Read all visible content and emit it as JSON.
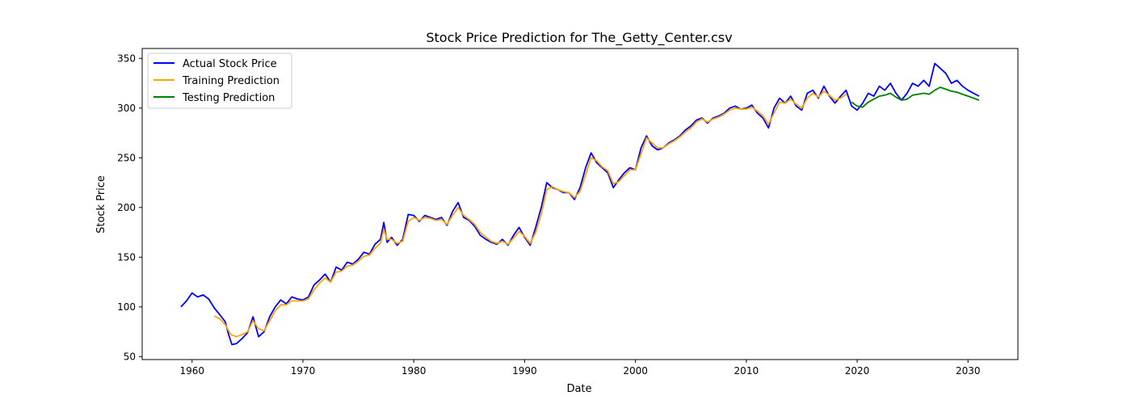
{
  "chart_data": {
    "type": "line",
    "title": "Stock Price Prediction for The_Getty_Center.csv",
    "xlabel": "Date",
    "ylabel": "Stock Price",
    "xlim": [
      1955.5,
      2034.5
    ],
    "ylim": [
      47,
      360
    ],
    "xticks": [
      1960,
      1970,
      1980,
      1990,
      2000,
      2010,
      2020,
      2030
    ],
    "yticks": [
      50,
      100,
      150,
      200,
      250,
      300,
      350
    ],
    "grid": false,
    "legend_position": "top-left",
    "series": [
      {
        "name": "Actual Stock Price",
        "color": "#0000ff",
        "points": [
          [
            1959.0,
            100
          ],
          [
            1959.5,
            106
          ],
          [
            1960.0,
            114
          ],
          [
            1960.5,
            110
          ],
          [
            1961.0,
            112
          ],
          [
            1961.5,
            108
          ],
          [
            1962.0,
            99
          ],
          [
            1962.5,
            92
          ],
          [
            1963.0,
            85
          ],
          [
            1963.3,
            72
          ],
          [
            1963.6,
            62
          ],
          [
            1964.0,
            63
          ],
          [
            1964.5,
            68
          ],
          [
            1965.0,
            74
          ],
          [
            1965.5,
            90
          ],
          [
            1966.0,
            70
          ],
          [
            1966.5,
            75
          ],
          [
            1967.0,
            90
          ],
          [
            1967.5,
            100
          ],
          [
            1968.0,
            107
          ],
          [
            1968.5,
            103
          ],
          [
            1969.0,
            110
          ],
          [
            1969.5,
            108
          ],
          [
            1970.0,
            107
          ],
          [
            1970.5,
            110
          ],
          [
            1971.0,
            122
          ],
          [
            1971.5,
            127
          ],
          [
            1972.0,
            133
          ],
          [
            1972.5,
            125
          ],
          [
            1973.0,
            140
          ],
          [
            1973.5,
            137
          ],
          [
            1974.0,
            145
          ],
          [
            1974.5,
            143
          ],
          [
            1975.0,
            148
          ],
          [
            1975.5,
            155
          ],
          [
            1976.0,
            153
          ],
          [
            1976.5,
            163
          ],
          [
            1977.0,
            168
          ],
          [
            1977.3,
            185
          ],
          [
            1977.6,
            165
          ],
          [
            1978.0,
            170
          ],
          [
            1978.5,
            162
          ],
          [
            1979.0,
            168
          ],
          [
            1979.5,
            193
          ],
          [
            1980.0,
            192
          ],
          [
            1980.5,
            186
          ],
          [
            1981.0,
            192
          ],
          [
            1981.5,
            190
          ],
          [
            1982.0,
            188
          ],
          [
            1982.5,
            190
          ],
          [
            1983.0,
            182
          ],
          [
            1983.5,
            196
          ],
          [
            1984.0,
            205
          ],
          [
            1984.5,
            190
          ],
          [
            1985.0,
            187
          ],
          [
            1985.5,
            181
          ],
          [
            1986.0,
            172
          ],
          [
            1986.5,
            168
          ],
          [
            1987.0,
            165
          ],
          [
            1987.5,
            163
          ],
          [
            1988.0,
            168
          ],
          [
            1988.5,
            162
          ],
          [
            1989.0,
            172
          ],
          [
            1989.5,
            180
          ],
          [
            1990.0,
            170
          ],
          [
            1990.5,
            162
          ],
          [
            1991.0,
            180
          ],
          [
            1991.5,
            200
          ],
          [
            1992.0,
            225
          ],
          [
            1992.5,
            220
          ],
          [
            1993.0,
            218
          ],
          [
            1993.5,
            215
          ],
          [
            1994.0,
            215
          ],
          [
            1994.5,
            208
          ],
          [
            1995.0,
            220
          ],
          [
            1995.5,
            240
          ],
          [
            1996.0,
            255
          ],
          [
            1996.5,
            245
          ],
          [
            1997.0,
            240
          ],
          [
            1997.5,
            235
          ],
          [
            1998.0,
            220
          ],
          [
            1998.5,
            228
          ],
          [
            1999.0,
            235
          ],
          [
            1999.5,
            240
          ],
          [
            2000.0,
            238
          ],
          [
            2000.5,
            260
          ],
          [
            2001.0,
            272
          ],
          [
            2001.5,
            262
          ],
          [
            2002.0,
            258
          ],
          [
            2002.5,
            260
          ],
          [
            2003.0,
            265
          ],
          [
            2003.5,
            268
          ],
          [
            2004.0,
            272
          ],
          [
            2004.5,
            278
          ],
          [
            2005.0,
            282
          ],
          [
            2005.5,
            288
          ],
          [
            2006.0,
            290
          ],
          [
            2006.5,
            285
          ],
          [
            2007.0,
            290
          ],
          [
            2007.5,
            292
          ],
          [
            2008.0,
            295
          ],
          [
            2008.5,
            300
          ],
          [
            2009.0,
            302
          ],
          [
            2009.5,
            299
          ],
          [
            2010.0,
            300
          ],
          [
            2010.5,
            303
          ],
          [
            2011.0,
            295
          ],
          [
            2011.5,
            290
          ],
          [
            2012.0,
            280
          ],
          [
            2012.5,
            300
          ],
          [
            2013.0,
            310
          ],
          [
            2013.5,
            305
          ],
          [
            2014.0,
            312
          ],
          [
            2014.5,
            302
          ],
          [
            2015.0,
            298
          ],
          [
            2015.5,
            315
          ],
          [
            2016.0,
            318
          ],
          [
            2016.5,
            310
          ],
          [
            2017.0,
            322
          ],
          [
            2017.5,
            312
          ],
          [
            2018.0,
            305
          ],
          [
            2018.5,
            312
          ],
          [
            2019.0,
            318
          ],
          [
            2019.5,
            302
          ],
          [
            2020.0,
            298
          ],
          [
            2020.5,
            305
          ],
          [
            2021.0,
            315
          ],
          [
            2021.5,
            312
          ],
          [
            2022.0,
            322
          ],
          [
            2022.5,
            318
          ],
          [
            2023.0,
            325
          ],
          [
            2023.5,
            315
          ],
          [
            2024.0,
            308
          ],
          [
            2024.5,
            315
          ],
          [
            2025.0,
            325
          ],
          [
            2025.5,
            322
          ],
          [
            2026.0,
            328
          ],
          [
            2026.5,
            322
          ],
          [
            2027.0,
            345
          ],
          [
            2027.5,
            340
          ],
          [
            2028.0,
            335
          ],
          [
            2028.5,
            325
          ],
          [
            2029.0,
            328
          ],
          [
            2029.5,
            322
          ],
          [
            2030.0,
            318
          ],
          [
            2030.5,
            315
          ],
          [
            2031.0,
            312
          ]
        ]
      },
      {
        "name": "Training Prediction",
        "color": "#ffa500",
        "points": [
          [
            1962.0,
            91
          ],
          [
            1962.5,
            88
          ],
          [
            1963.0,
            82
          ],
          [
            1963.5,
            72
          ],
          [
            1964.0,
            70
          ],
          [
            1964.5,
            72
          ],
          [
            1965.0,
            75
          ],
          [
            1965.5,
            86
          ],
          [
            1966.0,
            78
          ],
          [
            1966.5,
            76
          ],
          [
            1967.0,
            86
          ],
          [
            1967.5,
            96
          ],
          [
            1968.0,
            102
          ],
          [
            1968.5,
            102
          ],
          [
            1969.0,
            106
          ],
          [
            1969.5,
            106
          ],
          [
            1970.0,
            106
          ],
          [
            1970.5,
            108
          ],
          [
            1971.0,
            117
          ],
          [
            1971.5,
            124
          ],
          [
            1972.0,
            129
          ],
          [
            1972.5,
            125
          ],
          [
            1973.0,
            135
          ],
          [
            1973.5,
            136
          ],
          [
            1974.0,
            141
          ],
          [
            1974.5,
            142
          ],
          [
            1975.0,
            146
          ],
          [
            1975.5,
            151
          ],
          [
            1976.0,
            152
          ],
          [
            1976.5,
            159
          ],
          [
            1977.0,
            164
          ],
          [
            1977.3,
            178
          ],
          [
            1977.6,
            168
          ],
          [
            1978.0,
            168
          ],
          [
            1978.5,
            164
          ],
          [
            1979.0,
            166
          ],
          [
            1979.5,
            186
          ],
          [
            1980.0,
            190
          ],
          [
            1980.5,
            187
          ],
          [
            1981.0,
            190
          ],
          [
            1981.5,
            189
          ],
          [
            1982.0,
            187
          ],
          [
            1982.5,
            188
          ],
          [
            1983.0,
            183
          ],
          [
            1983.5,
            192
          ],
          [
            1984.0,
            200
          ],
          [
            1984.5,
            192
          ],
          [
            1985.0,
            188
          ],
          [
            1985.5,
            183
          ],
          [
            1986.0,
            175
          ],
          [
            1986.5,
            170
          ],
          [
            1987.0,
            166
          ],
          [
            1987.5,
            164
          ],
          [
            1988.0,
            166
          ],
          [
            1988.5,
            163
          ],
          [
            1989.0,
            169
          ],
          [
            1989.5,
            176
          ],
          [
            1990.0,
            171
          ],
          [
            1990.5,
            164
          ],
          [
            1991.0,
            175
          ],
          [
            1991.5,
            193
          ],
          [
            1992.0,
            218
          ],
          [
            1992.5,
            221
          ],
          [
            1993.0,
            218
          ],
          [
            1993.5,
            216
          ],
          [
            1994.0,
            215
          ],
          [
            1994.5,
            210
          ],
          [
            1995.0,
            216
          ],
          [
            1995.5,
            233
          ],
          [
            1996.0,
            250
          ],
          [
            1996.5,
            247
          ],
          [
            1997.0,
            241
          ],
          [
            1997.5,
            237
          ],
          [
            1998.0,
            224
          ],
          [
            1998.5,
            226
          ],
          [
            1999.0,
            232
          ],
          [
            1999.5,
            238
          ],
          [
            2000.0,
            238
          ],
          [
            2000.5,
            254
          ],
          [
            2001.0,
            270
          ],
          [
            2001.5,
            265
          ],
          [
            2002.0,
            260
          ],
          [
            2002.5,
            260
          ],
          [
            2003.0,
            264
          ],
          [
            2003.5,
            267
          ],
          [
            2004.0,
            271
          ],
          [
            2004.5,
            276
          ],
          [
            2005.0,
            280
          ],
          [
            2005.5,
            286
          ],
          [
            2006.0,
            289
          ],
          [
            2006.5,
            286
          ],
          [
            2007.0,
            289
          ],
          [
            2007.5,
            291
          ],
          [
            2008.0,
            294
          ],
          [
            2008.5,
            298
          ],
          [
            2009.0,
            300
          ],
          [
            2009.5,
            299
          ],
          [
            2010.0,
            299
          ],
          [
            2010.5,
            301
          ],
          [
            2011.0,
            297
          ],
          [
            2011.5,
            292
          ],
          [
            2012.0,
            284
          ],
          [
            2012.5,
            295
          ],
          [
            2013.0,
            306
          ],
          [
            2013.5,
            305
          ],
          [
            2014.0,
            309
          ],
          [
            2014.5,
            304
          ],
          [
            2015.0,
            300
          ],
          [
            2015.5,
            310
          ],
          [
            2016.0,
            315
          ],
          [
            2016.5,
            311
          ],
          [
            2017.0,
            317
          ],
          [
            2017.5,
            313
          ],
          [
            2018.0,
            308
          ],
          [
            2018.5,
            310
          ],
          [
            2019.0,
            314
          ]
        ]
      },
      {
        "name": "Testing Prediction",
        "color": "#008000",
        "points": [
          [
            2019.5,
            306
          ],
          [
            2020.0,
            302
          ],
          [
            2020.5,
            301
          ],
          [
            2021.0,
            306
          ],
          [
            2021.5,
            309
          ],
          [
            2022.0,
            312
          ],
          [
            2022.5,
            313
          ],
          [
            2023.0,
            315
          ],
          [
            2023.5,
            311
          ],
          [
            2024.0,
            308
          ],
          [
            2024.5,
            309
          ],
          [
            2025.0,
            313
          ],
          [
            2025.5,
            314
          ],
          [
            2026.0,
            315
          ],
          [
            2026.5,
            314
          ],
          [
            2027.0,
            318
          ],
          [
            2027.5,
            321
          ],
          [
            2028.0,
            319
          ],
          [
            2028.5,
            317
          ],
          [
            2029.0,
            316
          ],
          [
            2029.5,
            314
          ],
          [
            2030.0,
            312
          ],
          [
            2030.5,
            310
          ],
          [
            2031.0,
            308
          ]
        ]
      }
    ]
  }
}
